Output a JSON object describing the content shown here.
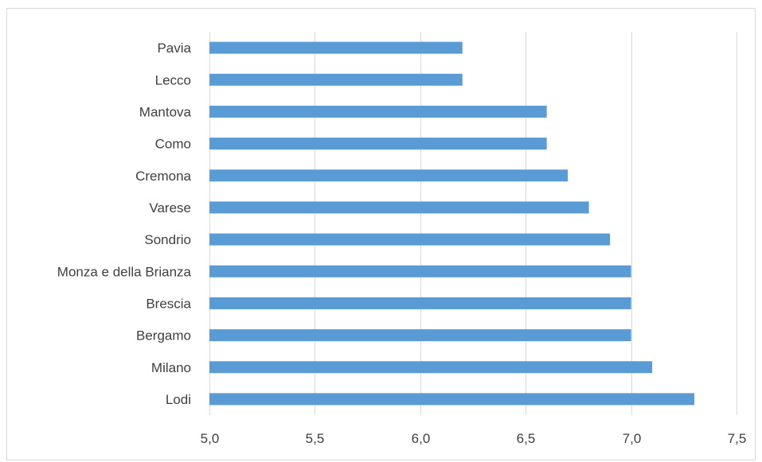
{
  "chart_data": {
    "type": "bar",
    "orientation": "horizontal",
    "categories": [
      "Pavia",
      "Lecco",
      "Mantova",
      "Como",
      "Cremona",
      "Varese",
      "Sondrio",
      "Monza e della Brianza",
      "Brescia",
      "Bergamo",
      "Milano",
      "Lodi"
    ],
    "values": [
      6.2,
      6.2,
      6.6,
      6.6,
      6.7,
      6.8,
      6.9,
      7.0,
      7.0,
      7.0,
      7.1,
      7.3
    ],
    "xlim": [
      5.0,
      7.5
    ],
    "xticks": [
      "5,0",
      "5,5",
      "6,0",
      "6,5",
      "7,0",
      "7,5"
    ],
    "title": "",
    "xlabel": "",
    "ylabel": "",
    "grid": "vertical",
    "bar_color": "#5b9bd5",
    "gridline_color": "#d9d9d9"
  }
}
